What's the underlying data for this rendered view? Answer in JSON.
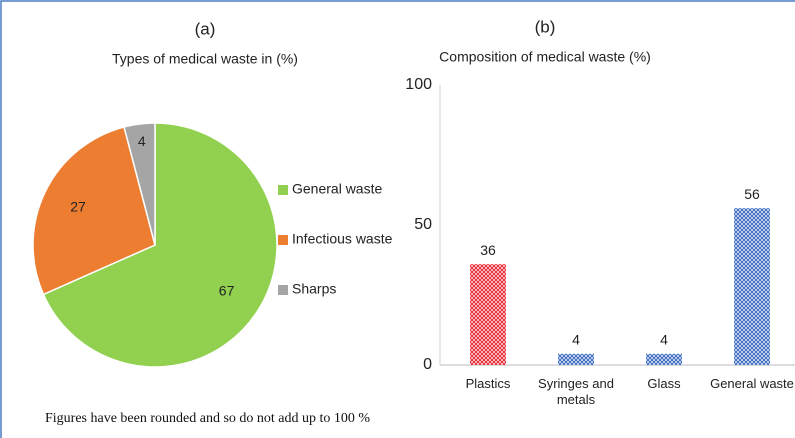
{
  "chart_data": [
    {
      "type": "pie",
      "title": "(a)",
      "subtitle": "Types of medical waste in (%)",
      "categories": [
        "General waste",
        "Infectious waste",
        "Sharps"
      ],
      "values": [
        67,
        27,
        4
      ],
      "colors": [
        "#92d050",
        "#ed7d31",
        "#a5a5a5"
      ],
      "legend": "right"
    },
    {
      "type": "bar",
      "title": "(b)",
      "subtitle": "Composition of  medical waste (%)",
      "categories": [
        "Plastics",
        "Syringes and metals",
        "Glass",
        "General waste"
      ],
      "values": [
        36,
        4,
        4,
        56
      ],
      "colors": [
        "#e8323c",
        "#4472c4",
        "#4472c4",
        "#4472c4"
      ],
      "ylim": [
        0,
        100
      ],
      "yticks": [
        0,
        50,
        100
      ],
      "grid": false
    }
  ],
  "note": "Figures have been rounded and so do not add up to 100 %"
}
